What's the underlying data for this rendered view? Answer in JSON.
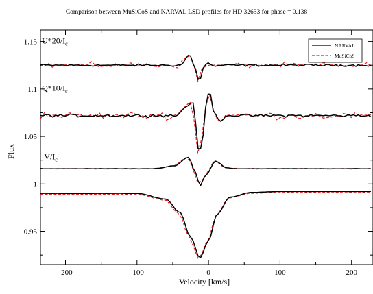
{
  "chart_data": {
    "type": "line",
    "title": "Comparison between MuSiCoS and NARVAL LSD profiles for HD 32633 for phase = 0.138",
    "xlabel": "Velocity [km/s]",
    "ylabel": "Flux",
    "xlim": [
      -235,
      230
    ],
    "ylim": [
      0.915,
      1.162
    ],
    "xticks": [
      -200,
      -100,
      0,
      100,
      200
    ],
    "xtick_labels": [
      "-200",
      "-100",
      "0",
      "100",
      "200"
    ],
    "yticks": [
      0.95,
      1.0,
      1.05,
      1.1,
      1.15
    ],
    "ytick_labels": [
      "0.95",
      "1",
      "1.05",
      "1.1",
      "1.15"
    ],
    "grid": false,
    "legend_position": "top-right",
    "series": [
      {
        "name": "NARVAL",
        "color": "#000000",
        "dash": "solid"
      },
      {
        "name": "MuSiCoS",
        "color": "#e31a1c",
        "dash": "dashed"
      }
    ],
    "panels": [
      {
        "label_main": "U*20/I",
        "label_sub": "c",
        "baseline": 1.125,
        "label_x": -233,
        "label_y": 1.148,
        "points": [
          [
            -40,
            1.125
          ],
          [
            -26,
            1.136
          ],
          [
            -21,
            1.126
          ],
          [
            -13,
            1.109
          ],
          [
            -6,
            1.124
          ],
          [
            0,
            1.128
          ],
          [
            5,
            1.124
          ],
          [
            20,
            1.125
          ]
        ]
      },
      {
        "label_main": "Q*10/I",
        "label_sub": "c",
        "baseline": 1.072,
        "label_x": -233,
        "label_y": 1.098,
        "points": [
          [
            -45,
            1.072
          ],
          [
            -30,
            1.082
          ],
          [
            -22,
            1.087
          ],
          [
            -17,
            1.06
          ],
          [
            -13,
            1.028
          ],
          [
            -8,
            1.05
          ],
          [
            -4,
            1.08
          ],
          [
            1,
            1.099
          ],
          [
            7,
            1.078
          ],
          [
            15,
            1.066
          ],
          [
            25,
            1.072
          ]
        ]
      },
      {
        "label_main": "V/I",
        "label_sub": "c",
        "baseline": 1.016,
        "label_x": -230,
        "label_y": 1.026,
        "points": [
          [
            -75,
            1.016
          ],
          [
            -48,
            1.019
          ],
          [
            -28,
            1.028
          ],
          [
            -18,
            1.012
          ],
          [
            -12,
            0.998
          ],
          [
            -4,
            1.009
          ],
          [
            10,
            1.024
          ],
          [
            25,
            1.017
          ],
          [
            40,
            1.016
          ]
        ]
      },
      {
        "label_main": "",
        "label_sub": "",
        "baseline": 0.991,
        "label_x": -233,
        "label_y": 0.99,
        "points": [
          [
            -100,
            0.99
          ],
          [
            -60,
            0.984
          ],
          [
            -40,
            0.97
          ],
          [
            -25,
            0.944
          ],
          [
            -12,
            0.922
          ],
          [
            0,
            0.94
          ],
          [
            12,
            0.968
          ],
          [
            30,
            0.986
          ],
          [
            60,
            0.991
          ],
          [
            100,
            0.992
          ]
        ]
      }
    ]
  }
}
